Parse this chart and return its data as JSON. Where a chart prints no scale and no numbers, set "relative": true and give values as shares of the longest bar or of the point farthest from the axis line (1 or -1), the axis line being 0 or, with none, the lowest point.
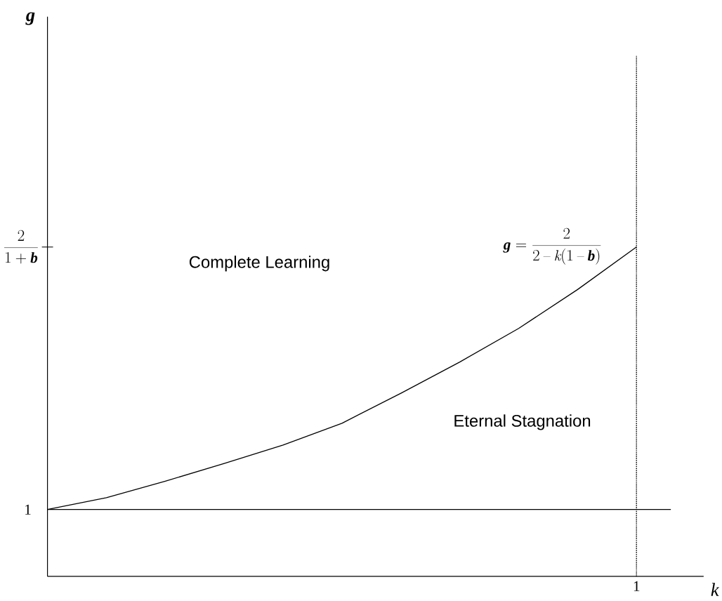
{
  "chart_data": {
    "type": "line",
    "relative": true,
    "xlabel": "k",
    "categories": [
      null,
      null,
      null,
      null,
      null,
      null,
      null,
      null,
      null,
      null,
      null
    ],
    "series": [
      {
        "color": "#000000",
        "values": [
          0.203,
          0.239,
          0.289,
          0.343,
          0.399,
          0.465,
          0.556,
          0.651,
          0.753,
          0.871,
          1.0
        ]
      }
    ],
    "ref_lines": [
      {
        "axis": "y",
        "value": 0.203,
        "line_style": "solid",
        "color": "#000000"
      }
    ],
    "annotations": [
      "Complete Learning",
      "Eternal Stagnation",
      "1",
      "1",
      "\\frac{2}{1+\\textbf{\\textit{b}}}",
      "\\textbf{\\textit{g}}=\\frac{2}{2-k(1-\\textbf{\\textit{b}})}",
      "g"
    ],
    "marker": "none",
    "line_style": "solid"
  }
}
